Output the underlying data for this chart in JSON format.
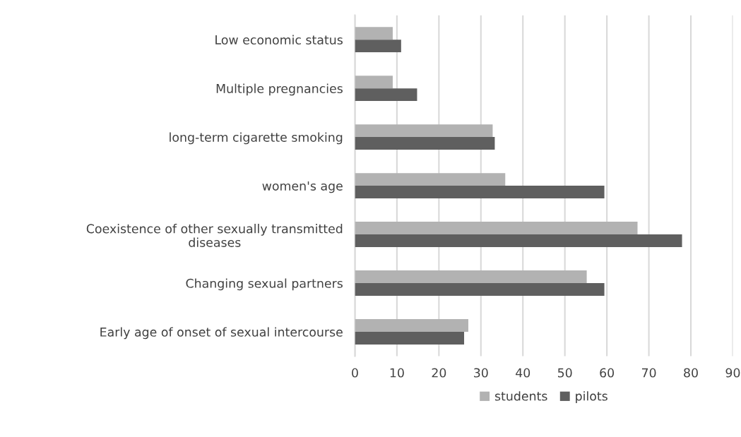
{
  "chart_data": {
    "type": "bar",
    "orientation": "horizontal",
    "categories": [
      "Low economic status",
      "Multiple pregnancies",
      "long-term cigarette smoking",
      "women's age",
      "Coexistence of other sexually transmitted diseases",
      "Changing sexual partners",
      "Early age of onset of sexual intercourse"
    ],
    "series": [
      {
        "name": "students",
        "color": "#b2b2b2",
        "values": [
          9,
          9,
          32.8,
          35.8,
          67.3,
          55.2,
          27
        ]
      },
      {
        "name": "pilots",
        "color": "#5f5f5f",
        "values": [
          11,
          14.8,
          33.3,
          59.4,
          77.9,
          59.4,
          26
        ]
      }
    ],
    "xlim": [
      0,
      90
    ],
    "xticks": [
      0,
      10,
      20,
      30,
      40,
      50,
      60,
      70,
      80,
      90
    ],
    "grid": "x",
    "legend": "bottom"
  }
}
